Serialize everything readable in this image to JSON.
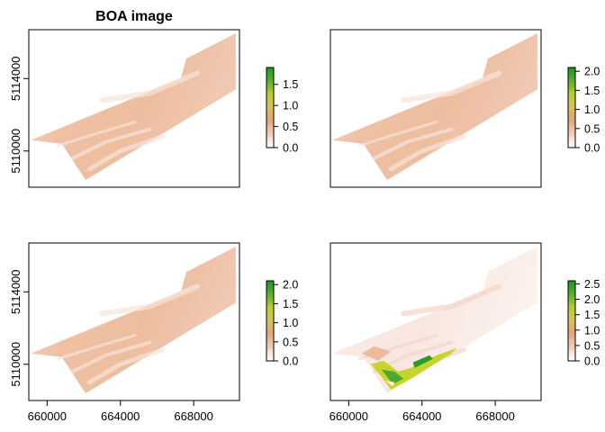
{
  "figure": {
    "title": "BOA image"
  },
  "chart_data": [
    {
      "type": "heatmap",
      "title": "BOA image",
      "xlabel": "",
      "ylabel": "",
      "xlim": [
        659000,
        670500
      ],
      "ylim": [
        5108000,
        5116700
      ],
      "x_ticks": [],
      "y_ticks": [
        5110000,
        5114000
      ],
      "y_tick_labels": [
        "5110000",
        "5114000"
      ],
      "legend": {
        "ticks": [
          0.0,
          0.5,
          1.0,
          1.5
        ],
        "tick_labels": [
          "0.0",
          "0.5",
          "1.0",
          "1.5"
        ],
        "range": [
          0,
          1.9
        ]
      },
      "colormap": [
        "#ffffff",
        "#f2c9b4",
        "#e2a579",
        "#d8c25c",
        "#b5d02a",
        "#5cae2f",
        "#1b9b1e"
      ],
      "extent_polygon": [
        [
          659100,
          5110600
        ],
        [
          667300,
          5114000
        ],
        [
          667600,
          5115100
        ],
        [
          670300,
          5116500
        ],
        [
          670300,
          5113400
        ],
        [
          662100,
          5108400
        ],
        [
          660800,
          5110400
        ],
        [
          659100,
          5110600
        ]
      ],
      "notch_polygon": [
        [
          659100,
          5110600
        ],
        [
          659700,
          5112400
        ],
        [
          664100,
          5114500
        ],
        [
          664200,
          5114900
        ],
        [
          664300,
          5114900
        ],
        [
          664300,
          5114300
        ],
        [
          664800,
          5114000
        ],
        [
          665400,
          5113900
        ],
        [
          666400,
          5114000
        ],
        [
          667300,
          5114000
        ]
      ]
    },
    {
      "type": "heatmap",
      "title": "",
      "xlim": [
        659000,
        670500
      ],
      "ylim": [
        5108000,
        5116700
      ],
      "x_ticks": [],
      "y_ticks": [],
      "legend": {
        "ticks": [
          0.0,
          0.5,
          1.0,
          1.5,
          2.0
        ],
        "tick_labels": [
          "0.0",
          "0.5",
          "1.0",
          "1.5",
          "2.0"
        ],
        "range": [
          0,
          2.1
        ]
      },
      "colormap": [
        "#ffffff",
        "#f2c9b4",
        "#e2a579",
        "#d8c25c",
        "#b5d02a",
        "#5cae2f",
        "#1b9b1e"
      ]
    },
    {
      "type": "heatmap",
      "title": "",
      "xlim": [
        659000,
        670500
      ],
      "ylim": [
        5108000,
        5116700
      ],
      "x_ticks": [
        660000,
        664000,
        668000
      ],
      "x_tick_labels": [
        "660000",
        "664000",
        "668000"
      ],
      "y_ticks": [
        5110000,
        5114000
      ],
      "y_tick_labels": [
        "5110000",
        "5114000"
      ],
      "legend": {
        "ticks": [
          0.0,
          0.5,
          1.0,
          1.5,
          2.0
        ],
        "tick_labels": [
          "0.0",
          "0.5",
          "1.0",
          "1.5",
          "2.0"
        ],
        "range": [
          0,
          2.1
        ]
      },
      "colormap": [
        "#ffffff",
        "#f2c9b4",
        "#e2a579",
        "#d8c25c",
        "#b5d02a",
        "#5cae2f",
        "#1b9b1e"
      ]
    },
    {
      "type": "heatmap",
      "title": "",
      "xlim": [
        659000,
        670500
      ],
      "ylim": [
        5108000,
        5116700
      ],
      "x_ticks": [
        660000,
        664000,
        668000
      ],
      "x_tick_labels": [
        "660000",
        "664000",
        "668000"
      ],
      "y_ticks": [],
      "legend": {
        "ticks": [
          0.0,
          0.5,
          1.0,
          1.5,
          2.0,
          2.5
        ],
        "tick_labels": [
          "0.0",
          "0.5",
          "1.0",
          "1.5",
          "2.0",
          "2.5"
        ],
        "range": [
          0,
          2.6
        ]
      },
      "colormap": [
        "#ffffff",
        "#f2c9b4",
        "#e2a579",
        "#d8c25c",
        "#b5d02a",
        "#5cae2f",
        "#1b9b1e"
      ]
    }
  ]
}
